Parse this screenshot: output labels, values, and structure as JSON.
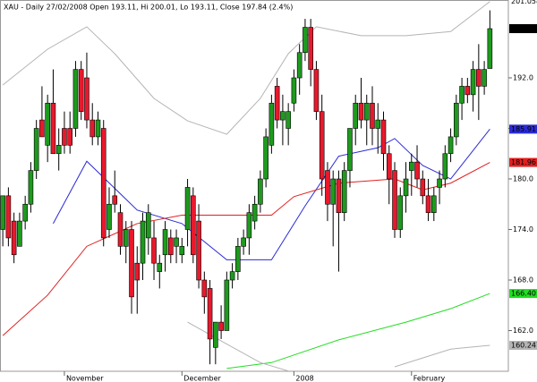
{
  "chart_data": {
    "type": "candlestick",
    "title": "XAU - Daily 27/02/2008 Open 193.11, Hi 200.01, Lo 193.11, Close 197.84 (2.4%)",
    "up_color": "#1e9a1e",
    "down_color": "#e8192c",
    "xlim": [
      -0.5,
      90.3
    ],
    "xticks": [
      {
        "value": 11,
        "label": "November"
      },
      {
        "value": 32,
        "label": "December"
      },
      {
        "value": 52,
        "label": "2008"
      },
      {
        "value": 73,
        "label": "February"
      }
    ],
    "ylim": [
      157.17,
      201.24
    ],
    "yticks": [
      {
        "value": 162,
        "label": "162.0"
      },
      {
        "value": 168,
        "label": "168.0"
      },
      {
        "value": 174,
        "label": "174.0"
      },
      {
        "value": 180,
        "label": "180.0"
      },
      {
        "value": 186,
        "label": "186.0"
      },
      {
        "value": 192,
        "label": "192.0"
      }
    ],
    "open": [
      174,
      178,
      175,
      172,
      175,
      177,
      181,
      187,
      184,
      189,
      183,
      186,
      186,
      186,
      193,
      192,
      187,
      185,
      186,
      174,
      178,
      176,
      172,
      174,
      170,
      170,
      173,
      173,
      169,
      171,
      173,
      172,
      171,
      174,
      178,
      175,
      168,
      167,
      160,
      163,
      162,
      168,
      169,
      172,
      173,
      175,
      177,
      180,
      184,
      191,
      187,
      186,
      189,
      192,
      195,
      198,
      193,
      188,
      181,
      177,
      180,
      176,
      181,
      186,
      189,
      187,
      189,
      186,
      187,
      183,
      181,
      174,
      178,
      181,
      182,
      180,
      178,
      176,
      179,
      180,
      183,
      185,
      189,
      191,
      190,
      193,
      191,
      193.11
    ],
    "high": [
      178,
      179,
      176,
      176,
      178,
      182,
      187,
      191,
      190,
      193,
      186,
      188,
      188,
      194,
      194,
      195,
      189,
      188,
      187,
      179,
      181,
      177,
      175,
      175,
      172,
      176,
      177,
      175,
      171,
      175,
      174,
      174,
      173,
      180,
      179,
      177,
      169,
      168,
      163,
      165,
      169,
      170,
      173,
      174,
      177,
      178,
      181,
      186,
      190,
      192,
      190,
      189,
      193,
      196,
      199,
      199,
      194,
      190,
      182,
      181,
      181,
      182,
      186,
      190,
      192,
      190,
      191,
      189,
      188,
      184,
      182,
      179,
      182,
      183,
      184,
      181,
      180,
      179,
      181,
      184,
      186,
      190,
      192,
      192,
      194,
      196,
      194,
      200.01
    ],
    "low": [
      172,
      172,
      170,
      172,
      174,
      176,
      180,
      185,
      182,
      183,
      181,
      183,
      183,
      185,
      187,
      186,
      184,
      184,
      172,
      173,
      176,
      171,
      170,
      164,
      164,
      168,
      171,
      168,
      167,
      169,
      170,
      170,
      170,
      172,
      170,
      167,
      164,
      158,
      158,
      161,
      162,
      167,
      168,
      171,
      171,
      174,
      176,
      179,
      183,
      186,
      184,
      184,
      188,
      190,
      194,
      191,
      187,
      178,
      175,
      172,
      169,
      175,
      179,
      184,
      186,
      184,
      184,
      183,
      181,
      177,
      173,
      173,
      176,
      178,
      179,
      177,
      175,
      175,
      177,
      179,
      182,
      184,
      187,
      189,
      188,
      187,
      190,
      193.11
    ],
    "close": [
      178,
      173,
      171,
      175,
      177,
      181,
      186,
      185,
      189,
      183,
      184,
      184,
      184,
      193,
      188,
      187,
      185,
      187,
      173,
      177,
      177,
      172,
      174,
      166,
      168,
      175,
      176,
      170,
      170,
      174,
      171,
      173,
      172,
      179,
      171,
      168,
      166,
      161,
      163,
      162,
      168,
      169,
      172,
      173,
      176,
      177,
      180,
      185,
      189,
      187,
      188,
      188,
      192,
      195,
      198,
      193,
      188,
      180,
      177,
      180,
      176,
      181,
      186,
      189,
      187,
      189,
      186,
      187,
      183,
      180,
      174,
      178,
      180,
      182,
      180,
      178,
      176,
      178,
      180,
      183,
      185,
      189,
      191,
      190,
      193,
      191,
      193,
      197.84
    ],
    "close_label": "197.84",
    "overlays": [
      {
        "color": "#b4b4b4",
        "label": "201.058",
        "label_bg": "#ffffff",
        "label_fg": "#555555",
        "x": [
          0,
          8,
          15,
          20,
          27,
          33,
          40,
          46,
          51,
          56,
          64,
          72,
          80,
          87
        ],
        "values": [
          191.15,
          195.4,
          198.06,
          194.87,
          189.56,
          186.9,
          185.3,
          189.56,
          194.87,
          198.06,
          197,
          197,
          197.5,
          201.058
        ]
      },
      {
        "color": "#2b2bd6",
        "label": "185.91",
        "label_bg": "#2b2bd6",
        "label_fg": "#ffffff",
        "x": [
          9,
          15,
          24,
          32,
          40,
          48,
          54,
          60,
          67,
          70,
          75,
          80,
          87
        ],
        "values": [
          174.7,
          182.1,
          176.3,
          174.7,
          170.4,
          170.4,
          176.8,
          182.7,
          183.7,
          184.8,
          181.6,
          180,
          185.91
        ]
      },
      {
        "color": "#e02020",
        "label": "181.96",
        "label_bg": "#e02020",
        "label_fg": "#ffffff",
        "x": [
          0,
          8,
          15,
          24,
          32,
          48,
          52,
          60,
          70,
          75,
          80,
          87
        ],
        "values": [
          161.4,
          166.2,
          172,
          174.7,
          175.7,
          175.7,
          177.9,
          179.5,
          180,
          178.7,
          179.5,
          181.96
        ]
      },
      {
        "color": "#22dd22",
        "label": "166.401",
        "label_bg": "#22dd22",
        "label_fg": "#000000",
        "x": [
          40,
          48,
          60,
          72,
          80,
          87
        ],
        "values": [
          157.5,
          158.2,
          160.9,
          163,
          164.6,
          166.401
        ]
      },
      {
        "color": "#b4b4b4",
        "label": "160.247",
        "label_bg": "#b4b4b4",
        "label_fg": "#000000",
        "x": [
          33,
          40,
          46,
          51,
          60,
          70,
          80,
          87
        ],
        "values": [
          163,
          160.4,
          158.2,
          157.2,
          null,
          157.7,
          159.8,
          160.247
        ]
      }
    ]
  }
}
